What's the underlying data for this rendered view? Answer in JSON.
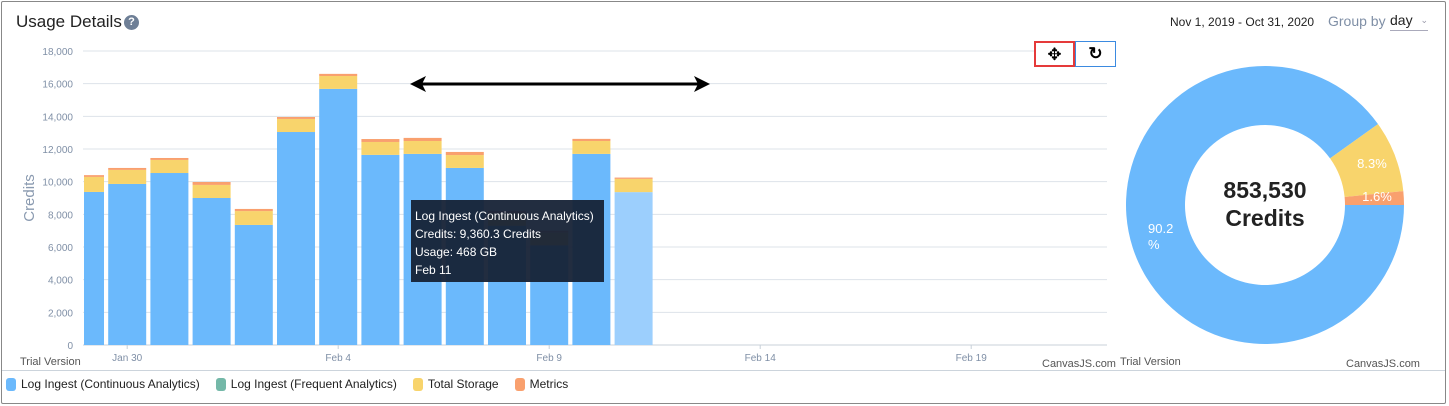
{
  "header": {
    "title": "Usage Details",
    "help_icon": "question-circle-icon",
    "date_range": "Nov 1, 2019 - Oct 31, 2020",
    "group_by_label": "Group by",
    "group_by_value": "day"
  },
  "toolbar": {
    "pan_icon": "move-arrows-icon",
    "reset_icon": "reset-rotate-icon"
  },
  "tooltip": {
    "series": "Log Ingest (Continuous Analytics)",
    "credits": "Credits: 9,360.3 Credits",
    "usage": "Usage: 468 GB",
    "date": "Feb 11"
  },
  "watermarks": {
    "trial": "Trial Version",
    "canvasjs": "CanvasJS.com"
  },
  "legend": [
    {
      "label": "Log Ingest (Continuous Analytics)",
      "color": "#6bb9fc"
    },
    {
      "label": "Log Ingest (Frequent Analytics)",
      "color": "#74b8a8"
    },
    {
      "label": "Total Storage",
      "color": "#f8d46c"
    },
    {
      "label": "Metrics",
      "color": "#f9a06e"
    }
  ],
  "chart_data": [
    {
      "type": "stacked-bar",
      "ylabel": "Credits",
      "ylim": [
        0,
        18000
      ],
      "yticks": [
        "0",
        "2,000",
        "4,000",
        "6,000",
        "8,000",
        "10,000",
        "12,000",
        "14,000",
        "16,000",
        "18,000"
      ],
      "xticks": [
        "Jan 30",
        "Feb 4",
        "Feb 9",
        "Feb 14",
        "Feb 19"
      ],
      "x_range_days": [
        "Jan 29",
        "Feb 22"
      ],
      "grid": true,
      "categories": [
        "Jan 29",
        "Jan 30",
        "Jan 31",
        "Feb 1",
        "Feb 2",
        "Feb 3",
        "Feb 4",
        "Feb 5",
        "Feb 6",
        "Feb 7",
        "Feb 8",
        "Feb 9",
        "Feb 10",
        "Feb 11"
      ],
      "highlighted": "Feb 11",
      "series": [
        {
          "name": "Log Ingest (Continuous Analytics)",
          "color": "#6bb9fc",
          "values": [
            9370,
            9860,
            10530,
            9000,
            7350,
            13040,
            15680,
            11640,
            11700,
            10840,
            7300,
            6100,
            11700,
            9360.3
          ]
        },
        {
          "name": "Log Ingest (Frequent Analytics)",
          "color": "#74b8a8",
          "values": [
            0,
            0,
            0,
            0,
            0,
            0,
            0,
            0,
            0,
            0,
            0,
            0,
            0,
            0
          ]
        },
        {
          "name": "Total Storage",
          "color": "#f8d46c",
          "values": [
            920,
            860,
            800,
            800,
            850,
            800,
            790,
            790,
            790,
            790,
            780,
            780,
            790,
            810
          ]
        },
        {
          "name": "Metrics",
          "color": "#f9a06e",
          "values": [
            110,
            120,
            120,
            180,
            130,
            120,
            130,
            180,
            190,
            190,
            120,
            120,
            130,
            80
          ]
        }
      ]
    },
    {
      "type": "doughnut",
      "center_value": "853,530",
      "center_unit": "Credits",
      "slices": [
        {
          "name": "Log Ingest (Continuous Analytics)",
          "value": 90.2,
          "label": "90.2 %",
          "color": "#6bb9fc"
        },
        {
          "name": "Total Storage",
          "value": 8.3,
          "label": "8.3%",
          "color": "#f8d46c"
        },
        {
          "name": "Metrics",
          "value": 1.6,
          "label": "1.6%",
          "color": "#f9a06e"
        }
      ]
    }
  ]
}
